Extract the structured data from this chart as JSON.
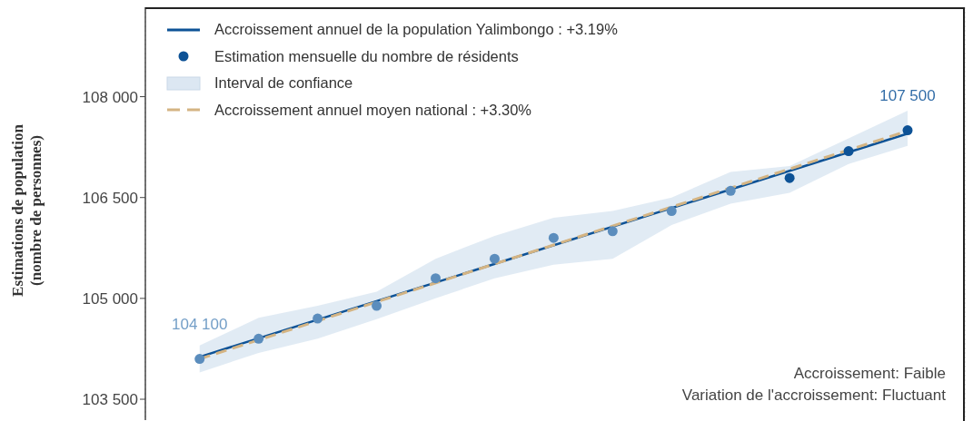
{
  "chart_data": {
    "type": "line",
    "ylabel": "Estimations de population\n(nombre de personnes)",
    "categories": [
      null,
      null,
      null,
      null,
      null,
      null,
      null,
      null,
      null,
      null,
      null,
      null,
      null
    ],
    "series": [
      {
        "type": "line",
        "name": "Accroissement annuel de la population Yalimbongo : +3.19%",
        "color": "#0d5296",
        "line_style": "solid",
        "values": [
          104130,
          null,
          null,
          null,
          null,
          null,
          null,
          null,
          null,
          null,
          null,
          null,
          107450
        ]
      },
      {
        "type": "line",
        "name": "Accroissement annuel moyen national : +3.30%",
        "color": "#d4b483",
        "line_style": "dashed",
        "values": [
          104100,
          null,
          null,
          null,
          null,
          null,
          null,
          null,
          null,
          null,
          null,
          null,
          107490
        ]
      },
      {
        "type": "scatter",
        "name": "Estimation mensuelle du nombre de résidents",
        "color": "#0d5296",
        "marker": "circle",
        "colors": [
          "#5b8dbd",
          "#5b8dbd",
          "#5b8dbd",
          "#5b8dbd",
          "#5b8dbd",
          "#5b8dbd",
          "#5b8dbd",
          "#5b8dbd",
          "#5b8dbd",
          "#5b8dbd",
          "#0d5296",
          "#0d5296",
          "#0d5296"
        ],
        "values": [
          104100,
          104400,
          104700,
          104890,
          105300,
          105590,
          105900,
          106000,
          106300,
          106600,
          106790,
          107190,
          107500
        ],
        "value_labels": [
          "104 100",
          null,
          null,
          null,
          null,
          null,
          null,
          null,
          null,
          null,
          null,
          null,
          "107 500"
        ],
        "lower": [
          103900,
          104190,
          104400,
          104690,
          105000,
          105300,
          105500,
          105590,
          106090,
          106410,
          106570,
          107000,
          107270
        ],
        "upper": [
          104300,
          104710,
          104890,
          105100,
          105590,
          105930,
          106200,
          106300,
          106500,
          106880,
          106970,
          107380,
          107790
        ]
      }
    ],
    "ylim": [
      103190,
      109330
    ],
    "yticks": [
      {
        "value": 103500,
        "label": "103 500"
      },
      {
        "value": 105000,
        "label": "105 000"
      },
      {
        "value": 106500,
        "label": "106 500"
      },
      {
        "value": 108000,
        "label": "108 000"
      }
    ],
    "grid": "x",
    "legend": "top left",
    "annotations": [
      "Interval de confiance",
      "Accroissement: Faible",
      "Variation de l'accroissement: Fluctuant"
    ]
  }
}
